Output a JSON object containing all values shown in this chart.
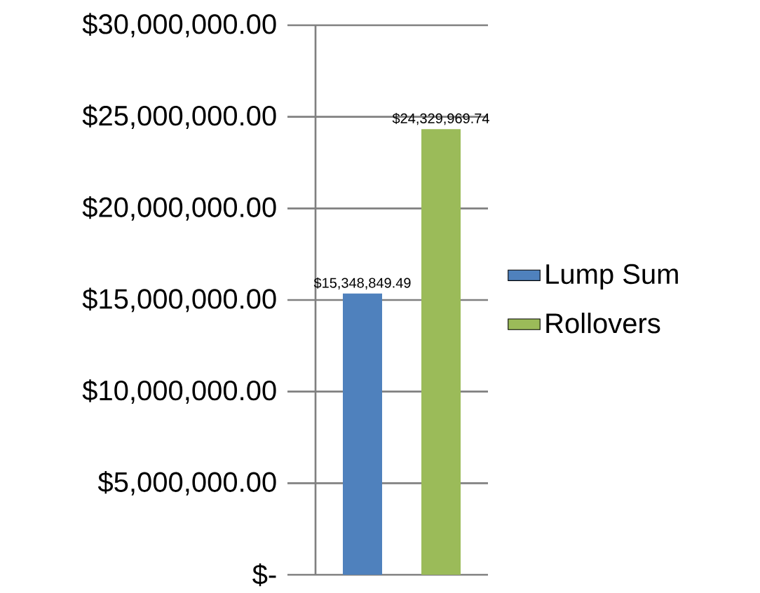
{
  "chart_data": {
    "type": "bar",
    "categories": [
      null
    ],
    "series": [
      {
        "name": "Lump Sum",
        "color": "#4f81bd",
        "values": [
          15348849.49
        ],
        "value_labels": [
          "$15,348,849.49"
        ]
      },
      {
        "name": "Rollovers",
        "color": "#9bbb59",
        "values": [
          24329969.74
        ],
        "value_labels": [
          "$24,329,969.74"
        ]
      }
    ],
    "ylim": [
      0,
      30000000
    ],
    "yticks": [
      {
        "value": 0,
        "label": "$-"
      },
      {
        "value": 5000000,
        "label": "$5,000,000.00"
      },
      {
        "value": 10000000,
        "label": "$10,000,000.00"
      },
      {
        "value": 15000000,
        "label": "$15,000,000.00"
      },
      {
        "value": 20000000,
        "label": "$20,000,000.00"
      },
      {
        "value": 25000000,
        "label": "$25,000,000.00"
      },
      {
        "value": 30000000,
        "label": "$30,000,000.00"
      }
    ],
    "grid": "y",
    "legend": "right"
  }
}
